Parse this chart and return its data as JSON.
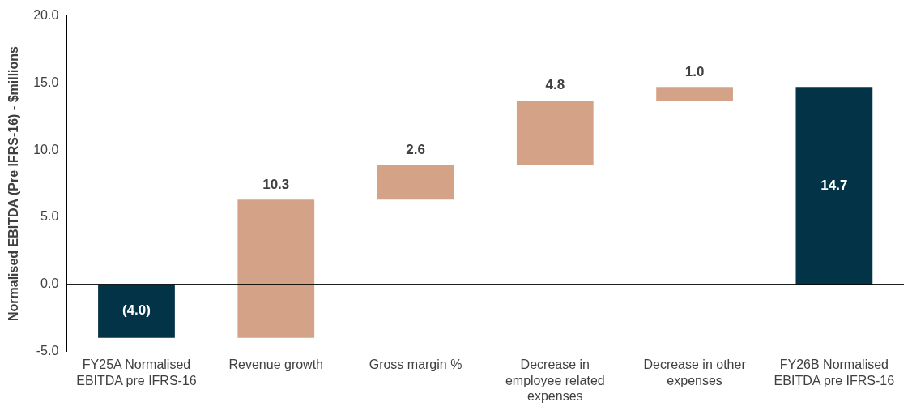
{
  "chart_data": {
    "type": "bar",
    "ylabel": "Normalised EBITDA (Pre IFRS-16) - $millions",
    "categories": [
      "FY25A Normalised EBITDA pre IFRS-16",
      "Revenue growth",
      "Gross margin %",
      "Decrease in employee related expenses",
      "Decrease in other expenses",
      "FY26B Normalised EBITDA pre IFRS-16"
    ],
    "base": [
      0,
      -4.0,
      6.3,
      8.9,
      13.7,
      0
    ],
    "values": [
      -4.0,
      10.3,
      2.6,
      4.8,
      1.0,
      14.7
    ],
    "value_labels": [
      "(4.0)",
      "10.3",
      "2.6",
      "4.8",
      "1.0",
      "14.7"
    ],
    "colors": [
      "#023347",
      "#d4a387",
      "#d4a387",
      "#d4a387",
      "#d4a387",
      "#023347"
    ],
    "ylim": [
      -5,
      20
    ],
    "yticks": [
      {
        "value": -5,
        "label": "-5.0"
      },
      {
        "value": 0,
        "label": "0.0"
      },
      {
        "value": 5,
        "label": "5.0"
      },
      {
        "value": 10,
        "label": "10.0"
      },
      {
        "value": 15,
        "label": "15.0"
      },
      {
        "value": 20,
        "label": "20.0"
      }
    ],
    "ref_lines": [
      {
        "axis": "y",
        "value": 0,
        "color": "#000000"
      }
    ],
    "grid": false,
    "legend": false
  }
}
